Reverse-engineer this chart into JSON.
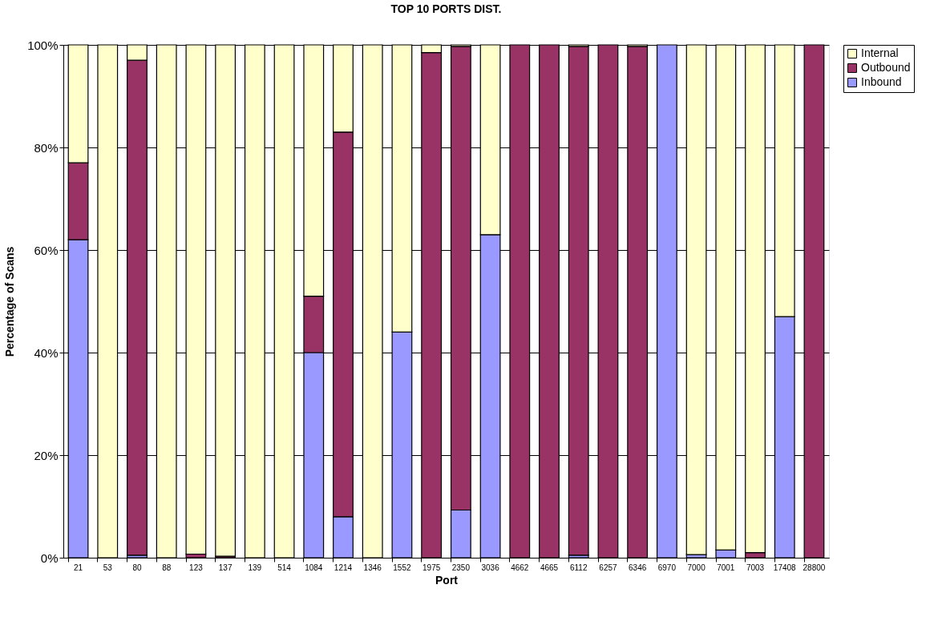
{
  "chart_data": {
    "type": "bar",
    "stacked": true,
    "title": "TOP 10 PORTS DIST.",
    "xlabel": "Port",
    "ylabel": "Percentage of Scans",
    "categories": [
      "21",
      "53",
      "80",
      "88",
      "123",
      "137",
      "139",
      "514",
      "1084",
      "1214",
      "1346",
      "1552",
      "1975",
      "2350",
      "3036",
      "4662",
      "4665",
      "6112",
      "6257",
      "6346",
      "6970",
      "7000",
      "7001",
      "7003",
      "17408",
      "28800"
    ],
    "series": [
      {
        "name": "Inbound",
        "color": "#9999ff",
        "values": [
          62,
          null,
          0.5,
          null,
          null,
          null,
          null,
          null,
          40,
          8,
          null,
          44,
          null,
          9.3,
          63,
          null,
          null,
          0.5,
          null,
          null,
          100,
          0.6,
          1.5,
          null,
          47,
          null
        ]
      },
      {
        "name": "Outbound",
        "color": "#993366",
        "values": [
          15,
          null,
          96.5,
          null,
          0.7,
          0.3,
          null,
          null,
          11,
          75,
          null,
          null,
          98.5,
          90.4,
          null,
          100,
          100,
          99.2,
          100,
          99.7,
          null,
          null,
          null,
          1,
          null,
          100
        ]
      },
      {
        "name": "Internal",
        "color": "#ffffcc",
        "values": [
          23,
          100,
          3,
          100,
          99.3,
          99.7,
          100,
          100,
          49,
          17,
          100,
          56,
          1.5,
          0.3,
          37,
          null,
          null,
          0.3,
          null,
          0.3,
          null,
          99.4,
          98.5,
          99,
          53,
          null
        ]
      }
    ],
    "ylim": [
      0,
      100
    ],
    "yticks": [
      {
        "value": 0,
        "label": "0%"
      },
      {
        "value": 20,
        "label": "20%"
      },
      {
        "value": 40,
        "label": "40%"
      },
      {
        "value": 60,
        "label": "60%"
      },
      {
        "value": 80,
        "label": "80%"
      },
      {
        "value": 100,
        "label": "100%"
      }
    ],
    "grid": "y",
    "legend": "right"
  }
}
